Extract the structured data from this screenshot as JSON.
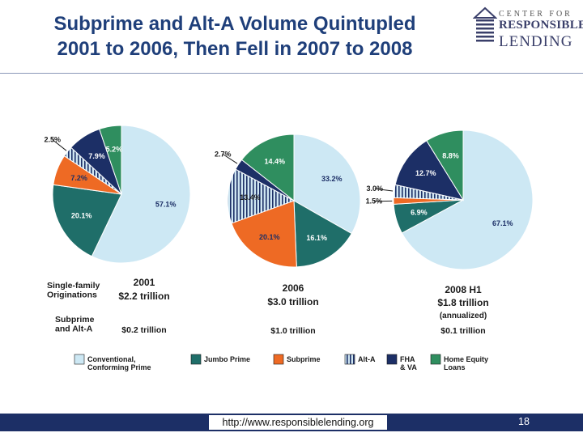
{
  "slide": {
    "title_line1": "Subprime and Alt-A Volume Quintupled",
    "title_line2": "2001 to 2006, Then Fell in 2007 to 2008",
    "url": "http://www.responsiblelending.org",
    "page_number": "18"
  },
  "logo": {
    "line1": "CENTER FOR",
    "line2": "RESPONSIBLE",
    "line3": "LENDING"
  },
  "colors": {
    "conventional": "#cde8f4",
    "jumbo": "#1f6e69",
    "subprime": "#ee6a24",
    "alt_a": "#cfe6f2",
    "alt_a_hatch": "#1c2f66",
    "fha": "#1c2f66",
    "home_equity": "#2f8e5f",
    "title": "#1f3f7a"
  },
  "chart_data": {
    "type": "pie",
    "categories": [
      "Conventional, Conforming Prime",
      "Jumbo Prime",
      "Subprime",
      "Alt-A",
      "FHA & VA",
      "Home Equity Loans"
    ],
    "legend": [
      {
        "label": "Conventional,\nConforming Prime",
        "key": "conventional"
      },
      {
        "label": "Jumbo Prime",
        "key": "jumbo"
      },
      {
        "label": "Subprime",
        "key": "subprime"
      },
      {
        "label": "Alt-A",
        "key": "alt_a"
      },
      {
        "label": "FHA\n& VA",
        "key": "fha"
      },
      {
        "label": "Home Equity\nLoans",
        "key": "home_equity"
      }
    ],
    "row_labels": {
      "originations": "Single-family\nOriginations",
      "subprime_alt_a": "Subprime\nand Alt-A"
    },
    "pies": [
      {
        "year": "2001",
        "total": "$2.2 trillion",
        "note": "",
        "subprime_alt_a": "$0.2 trillion",
        "series": [
          {
            "key": "conventional",
            "value": 57.1,
            "label": "57.1%"
          },
          {
            "key": "jumbo",
            "value": 20.1,
            "label": "20.1%"
          },
          {
            "key": "subprime",
            "value": 7.2,
            "label": "7.2%"
          },
          {
            "key": "alt_a",
            "value": 2.5,
            "label": "2.5%"
          },
          {
            "key": "fha",
            "value": 7.9,
            "label": "7.9%"
          },
          {
            "key": "home_equity",
            "value": 5.2,
            "label": "5.2%"
          }
        ]
      },
      {
        "year": "2006",
        "total": "$3.0 trillion",
        "note": "",
        "subprime_alt_a": "$1.0 trillion",
        "series": [
          {
            "key": "conventional",
            "value": 33.2,
            "label": "33.2%"
          },
          {
            "key": "jumbo",
            "value": 16.1,
            "label": "16.1%"
          },
          {
            "key": "subprime",
            "value": 20.1,
            "label": "20.1%"
          },
          {
            "key": "alt_a",
            "value": 13.4,
            "label": "13.4%"
          },
          {
            "key": "fha",
            "value": 2.7,
            "label": "2.7%"
          },
          {
            "key": "home_equity",
            "value": 14.4,
            "label": "14.4%"
          }
        ]
      },
      {
        "year": "2008 H1",
        "total": "$1.8 trillion",
        "note": "(annualized)",
        "subprime_alt_a": "$0.1 trillion",
        "series": [
          {
            "key": "conventional",
            "value": 67.1,
            "label": "67.1%"
          },
          {
            "key": "jumbo",
            "value": 6.9,
            "label": "6.9%"
          },
          {
            "key": "subprime",
            "value": 1.5,
            "label": "1.5%"
          },
          {
            "key": "alt_a",
            "value": 3.0,
            "label": "3.0%"
          },
          {
            "key": "fha",
            "value": 12.7,
            "label": "12.7%"
          },
          {
            "key": "home_equity",
            "value": 8.8,
            "label": "8.8%"
          }
        ]
      }
    ]
  }
}
